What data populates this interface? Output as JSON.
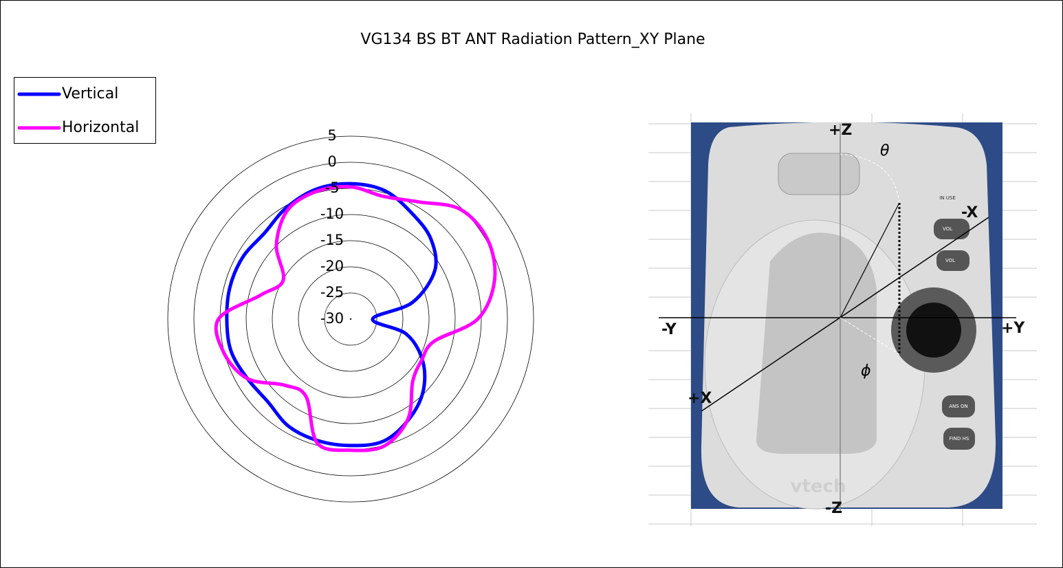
{
  "chart_data": {
    "type": "radar",
    "title": "VG134 BS BT ANT Radiation Pattern_XY Plane",
    "categories": [
      null,
      null,
      null,
      null,
      null,
      null,
      null,
      null,
      null,
      null,
      null,
      null,
      null,
      null,
      null,
      null,
      null,
      null,
      null,
      null,
      null,
      null,
      null,
      null
    ],
    "series": [
      {
        "name": "Vertical",
        "color": "#0000ff",
        "values": [
          -4.1,
          -4.6,
          -6.6,
          -8.3,
          -11.4,
          -17.8,
          -25.8,
          -19,
          -14.1,
          -10.4,
          -7.8,
          -5.8,
          -5.8,
          -5.9,
          -6.3,
          -7.6,
          -7.2,
          -6.3,
          -6.3,
          -6.1,
          -6.2,
          -6.7,
          -5.4,
          -4.3
        ]
      },
      {
        "name": "Horizontal",
        "color": "#ff00ff",
        "values": [
          -4.7,
          -5.7,
          -4.1,
          -0.3,
          0.3,
          -1.5,
          -5.7,
          -13.5,
          -14.3,
          -13.2,
          -8,
          -4.9,
          -4.9,
          -5.4,
          -12.9,
          -12.1,
          -7.2,
          -4.9,
          -4.7,
          -12.2,
          -15.1,
          -9.9,
          -5.9,
          -4.7
        ]
      }
    ],
    "ylim": [
      -30,
      5
    ],
    "yticks": [
      -30,
      -25,
      -20,
      -15,
      -10,
      -5,
      0,
      5
    ],
    "grid": true,
    "legend": "top-left"
  },
  "photo": {
    "axes": {
      "plus_z": "+Z",
      "minus_z": "-Z",
      "minus_y": "-Y",
      "plus_y": "+Y",
      "minus_x": "-X",
      "plus_x": "+X",
      "theta": "θ",
      "phi": "ϕ"
    },
    "buttons": {
      "in_use": "IN USE",
      "vol": "VOL",
      "vol2": "VOL",
      "ans": "ANS ON",
      "find": "FIND HS"
    },
    "brand": "vtech"
  }
}
